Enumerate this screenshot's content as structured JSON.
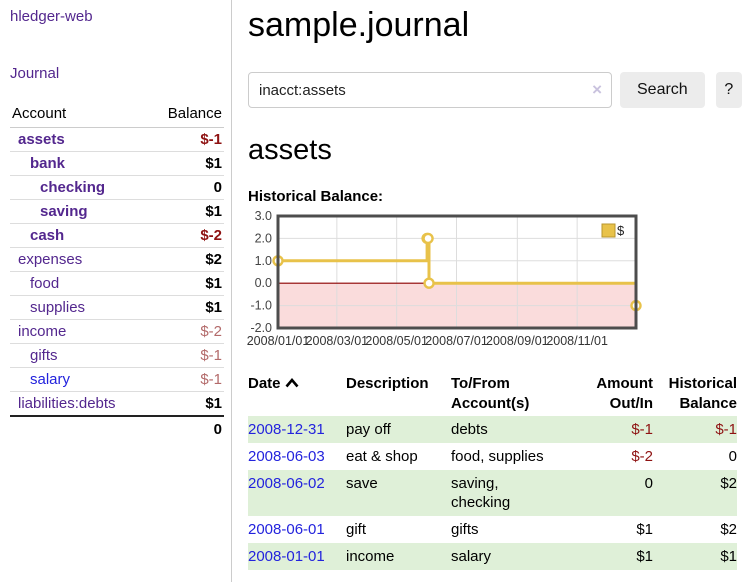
{
  "app": {
    "brand": "hledger-web",
    "nav_journal": "Journal"
  },
  "colors": {
    "link_purple": "#53278e",
    "link_blue": "#2323dd",
    "negative_strong": "#8e1212",
    "negative_muted": "#b36a6a",
    "row_green": "#dff0d8",
    "chart_gold": "#e8c24a",
    "chart_gold_border": "#b8962e",
    "chart_negative_fill": "#fadcdc",
    "chart_zero_line": "#8b0000"
  },
  "sidebar": {
    "header": {
      "account": "Account",
      "balance": "Balance"
    },
    "accounts": [
      {
        "name": "assets",
        "level": 0,
        "balance": "$-1",
        "bold": true,
        "balance_style": "neg-bold"
      },
      {
        "name": "bank",
        "level": 1,
        "balance": "$1",
        "bold": true,
        "balance_style": ""
      },
      {
        "name": "checking",
        "level": 2,
        "balance": "0",
        "bold": true,
        "balance_style": ""
      },
      {
        "name": "saving",
        "level": 2,
        "balance": "$1",
        "bold": true,
        "balance_style": ""
      },
      {
        "name": "cash",
        "level": 1,
        "balance": "$-2",
        "bold": true,
        "balance_style": "neg-bold"
      },
      {
        "name": "expenses",
        "level": 0,
        "balance": "$2",
        "bold": false,
        "balance_style": ""
      },
      {
        "name": "food",
        "level": 1,
        "balance": "$1",
        "bold": false,
        "balance_style": ""
      },
      {
        "name": "supplies",
        "level": 1,
        "balance": "$1",
        "bold": false,
        "balance_style": ""
      },
      {
        "name": "income",
        "level": 0,
        "balance": "$-2",
        "bold": false,
        "balance_style": "neg-light"
      },
      {
        "name": "gifts",
        "level": 1,
        "balance": "$-1",
        "bold": false,
        "balance_style": "neg-light"
      },
      {
        "name": "salary",
        "level": 1,
        "balance": "$-1",
        "bold": false,
        "balance_style": "neg-light",
        "link_style": "blue"
      },
      {
        "name": "liabilities:debts",
        "level": 0,
        "balance": "$1",
        "bold": false,
        "balance_style": ""
      }
    ],
    "total": "0"
  },
  "main": {
    "title": "sample.journal",
    "search": {
      "value": "inacct:assets",
      "clear_icon": "×",
      "search_label": "Search",
      "help_label": "?"
    },
    "account_heading": "assets",
    "chart_label": "Historical Balance:"
  },
  "chart_data": {
    "type": "line",
    "step": true,
    "title": "Historical Balance:",
    "legend": [
      "$"
    ],
    "legend_position": "top-right",
    "ylim": [
      -2,
      3
    ],
    "y_ticks": [
      3.0,
      2.0,
      1.0,
      0.0,
      -1.0,
      -2.0
    ],
    "x_range": [
      "2008-01-01",
      "2008-12-31"
    ],
    "x_ticks": [
      "2008/01/01",
      "2008/03/01",
      "2008/05/01",
      "2008/07/01",
      "2008/09/01",
      "2008/11/01"
    ],
    "series": [
      {
        "name": "$",
        "color": "#e8c24a",
        "points": [
          [
            "2008-01-01",
            1
          ],
          [
            "2008-06-01",
            2
          ],
          [
            "2008-06-02",
            2
          ],
          [
            "2008-06-03",
            0
          ],
          [
            "2008-12-31",
            -1
          ]
        ]
      }
    ],
    "negative_fill": "#fadcdc",
    "zero_line_color": "#8b0000",
    "grid": true
  },
  "register": {
    "headers": {
      "date": "Date",
      "description": "Description",
      "accounts": "To/From Account(s)",
      "amount": "Amount Out/In",
      "balance": "Historical Balance"
    },
    "rows": [
      {
        "date": "2008-12-31",
        "description": "pay off",
        "accounts": "debts",
        "amount": "$-1",
        "balance": "$-1"
      },
      {
        "date": "2008-06-03",
        "description": "eat & shop",
        "accounts": "food, supplies",
        "amount": "$-2",
        "balance": "0"
      },
      {
        "date": "2008-06-02",
        "description": "save",
        "accounts": "saving,\nchecking",
        "amount": "0",
        "balance": "$2"
      },
      {
        "date": "2008-06-01",
        "description": "gift",
        "accounts": "gifts",
        "amount": "$1",
        "balance": "$2"
      },
      {
        "date": "2008-01-01",
        "description": "income",
        "accounts": "salary",
        "amount": "$1",
        "balance": "$1"
      }
    ]
  }
}
